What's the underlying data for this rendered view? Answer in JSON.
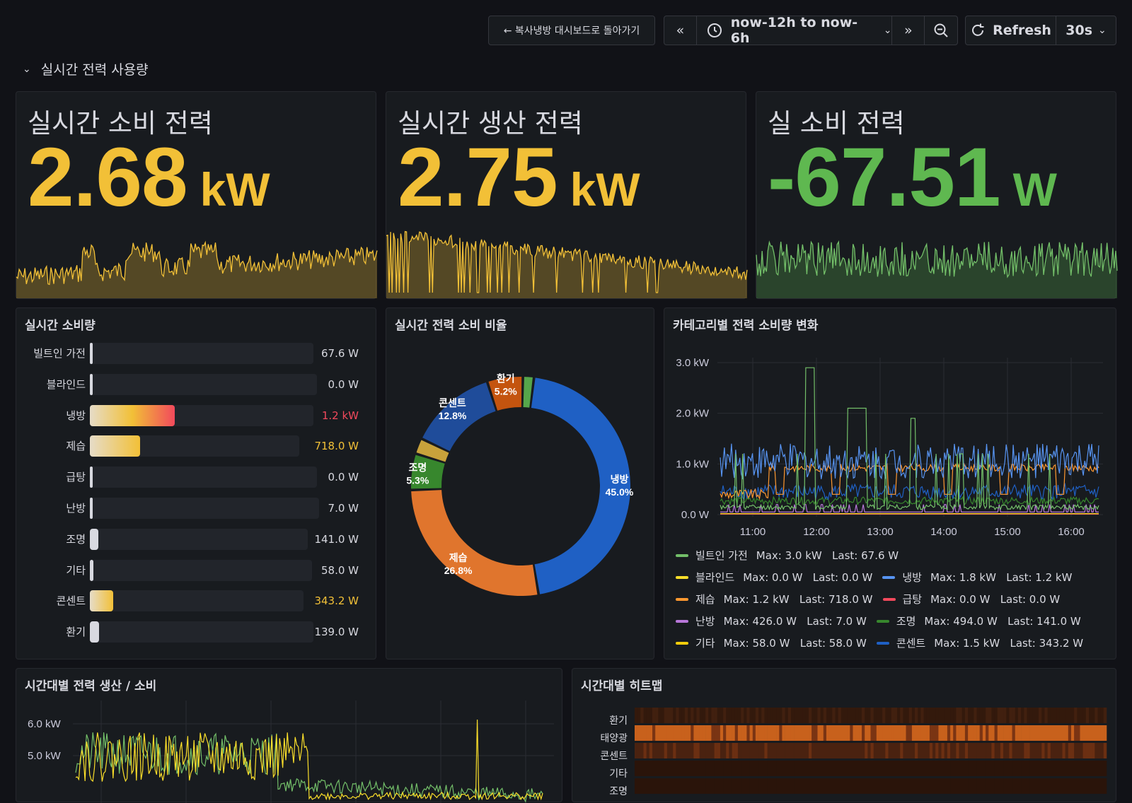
{
  "toolbar": {
    "back_label": "← 복사냉방 대시보드로 돌아가기",
    "time_range": "now-12h to now-6h",
    "refresh_label": "Refresh",
    "interval": "30s"
  },
  "row": {
    "title": "실시간 전력 사용량"
  },
  "stats": [
    {
      "title": "실시간 소비 전력",
      "value": "2.68",
      "unit": "kW",
      "color": "#f2c037"
    },
    {
      "title": "실시간 생산 전력",
      "value": "2.75",
      "unit": "kW",
      "color": "#f2c037"
    },
    {
      "title": "실 소비 전력",
      "value": "-67.51",
      "unit": "W",
      "color": "#5fb850"
    }
  ],
  "bargauge": {
    "title": "실시간 소비량",
    "items": [
      {
        "label": "빌트인 가전",
        "value": "67.6 W",
        "fraction": 0.012,
        "color": "#d8d9e0"
      },
      {
        "label": "블라인드",
        "value": "0.0 W",
        "fraction": 0.0,
        "color": "#d8d9e0"
      },
      {
        "label": "냉방",
        "value": "1.2 kW",
        "fraction": 0.38,
        "color": "#f2495c"
      },
      {
        "label": "제습",
        "value": "718.0 W",
        "fraction": 0.24,
        "color": "#f2c037"
      },
      {
        "label": "급탕",
        "value": "0.0 W",
        "fraction": 0.0,
        "color": "#d8d9e0"
      },
      {
        "label": "난방",
        "value": "7.0 W",
        "fraction": 0.002,
        "color": "#d8d9e0"
      },
      {
        "label": "조명",
        "value": "141.0 W",
        "fraction": 0.04,
        "color": "#d8d9e0"
      },
      {
        "label": "기타",
        "value": "58.0 W",
        "fraction": 0.015,
        "color": "#d8d9e0"
      },
      {
        "label": "콘센트",
        "value": "343.2 W",
        "fraction": 0.11,
        "color": "#f2c037"
      },
      {
        "label": "환기",
        "value": "139.0 W",
        "fraction": 0.04,
        "color": "#d8d9e0"
      }
    ]
  },
  "donut": {
    "title": "실시간 전력 소비 비율",
    "slices": [
      {
        "label": "",
        "percent": "",
        "value": 1.6,
        "color": "#56a64b"
      },
      {
        "label": "냉방",
        "percent": "45.0%",
        "value": 45.0,
        "color": "#1f60c4"
      },
      {
        "label": "제습",
        "percent": "26.8%",
        "value": 26.8,
        "color": "#e0752d"
      },
      {
        "label": "조명",
        "percent": "5.3%",
        "value": 5.3,
        "color": "#37872d"
      },
      {
        "label": "",
        "percent": "",
        "value": 2.3,
        "color": "#c8a23b"
      },
      {
        "label": "콘센트",
        "percent": "12.8%",
        "value": 12.8,
        "color": "#1f4c9a"
      },
      {
        "label": "환기",
        "percent": "5.2%",
        "value": 5.2,
        "color": "#c4540f"
      }
    ]
  },
  "timeseries": {
    "title": "카테고리별 전력 소비량 변화",
    "y_ticks": [
      "3.0 kW",
      "2.0 kW",
      "1.0 kW",
      "0.0 W"
    ],
    "x_ticks": [
      "11:00",
      "12:00",
      "13:00",
      "14:00",
      "15:00",
      "16:00"
    ],
    "legend": [
      [
        {
          "name": "빌트인 가전",
          "stats": "Max: 3.0 kW   Last: 67.6 W",
          "color": "#73bf69"
        }
      ],
      [
        {
          "name": "블라인드",
          "stats": "Max: 0.0 W   Last: 0.0 W",
          "color": "#fade2a"
        },
        {
          "name": "냉방",
          "stats": "Max: 1.8 kW   Last: 1.2 kW",
          "color": "#5794f2"
        }
      ],
      [
        {
          "name": "제습",
          "stats": "Max: 1.2 kW   Last: 718.0 W",
          "color": "#ff9830"
        },
        {
          "name": "급탕",
          "stats": "Max: 0.0 W   Last: 0.0 W",
          "color": "#f2495c"
        }
      ],
      [
        {
          "name": "난방",
          "stats": "Max: 426.0 W   Last: 7.0 W",
          "color": "#b877d9"
        },
        {
          "name": "조명",
          "stats": "Max: 494.0 W   Last: 141.0 W",
          "color": "#37872d"
        }
      ],
      [
        {
          "name": "기타",
          "stats": "Max: 58.0 W   Last: 58.0 W",
          "color": "#f2cc0c"
        },
        {
          "name": "콘센트",
          "stats": "Max: 1.5 kW   Last: 343.2 W",
          "color": "#1f60c4"
        }
      ]
    ]
  },
  "production": {
    "title": "시간대별 전력 생산 / 소비",
    "y_ticks": [
      "6.0 kW",
      "5.0 kW"
    ]
  },
  "heatmap": {
    "title": "시간대별 히트맵",
    "rows": [
      "환기",
      "태양광",
      "콘센트",
      "기타",
      "조명"
    ]
  }
}
